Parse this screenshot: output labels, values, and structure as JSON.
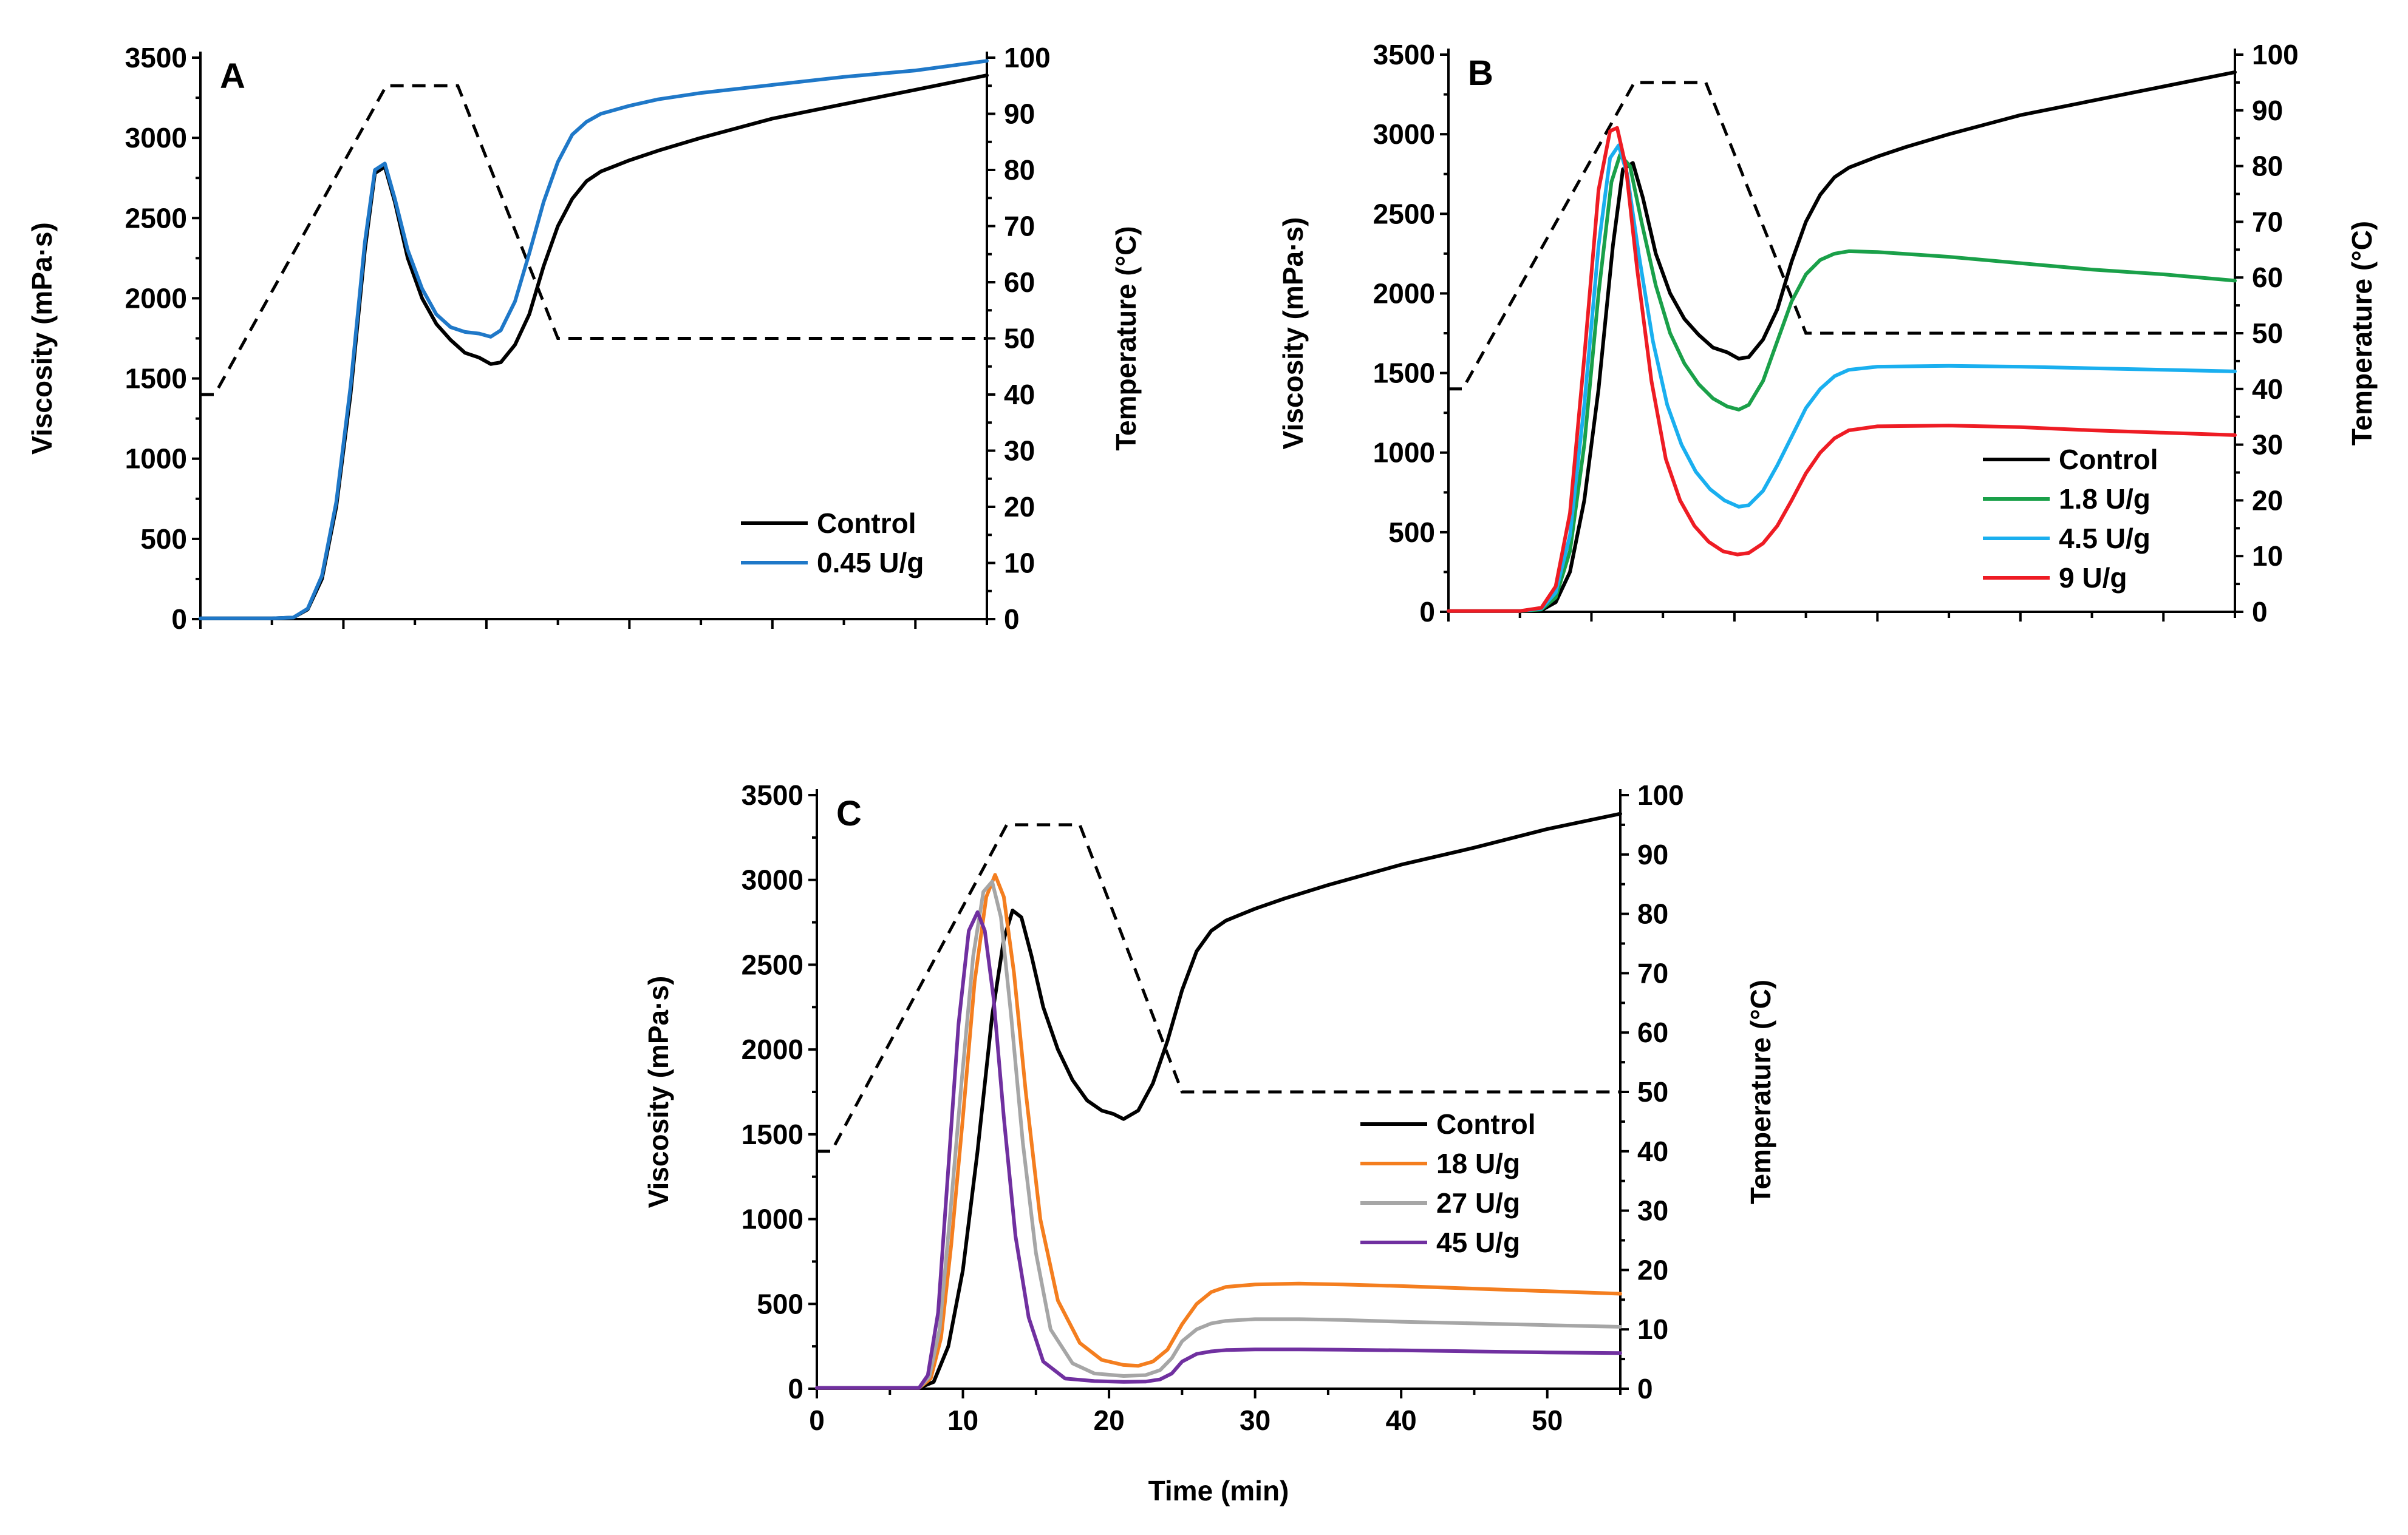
{
  "colors": {
    "control": "#000000",
    "u045": "#1f78c8",
    "u18": "#1aa049",
    "u45b": "#1aafef",
    "u9": "#ee1c24",
    "u18c": "#f47e1f",
    "u27": "#a6a6a6",
    "u45c": "#7030a0"
  },
  "chart_data": [
    {
      "type": "line",
      "panel": "A",
      "ylabel": "Viscosity (mPa·s)",
      "y2label": "Temperature (°C)",
      "xlabel": "",
      "xlim": [
        0,
        55
      ],
      "ylim": [
        0,
        3500
      ],
      "y2lim": [
        0,
        100
      ],
      "y_ticks": [
        0,
        500,
        1000,
        1500,
        2000,
        2500,
        3000,
        3500
      ],
      "y2_ticks": [
        0,
        10,
        20,
        30,
        40,
        50,
        60,
        70,
        80,
        90,
        100
      ],
      "x_ticks": [
        0,
        10,
        20,
        30,
        40,
        50
      ],
      "show_x_labels": false,
      "legend": "bottom-right",
      "temperature": {
        "x": [
          0,
          1,
          13,
          18,
          25,
          55
        ],
        "y": [
          40,
          40,
          95,
          95,
          50,
          50
        ]
      },
      "series": [
        {
          "name": "Control",
          "color_key": "control",
          "x": [
            0,
            5,
            6.5,
            7.5,
            8.5,
            9.5,
            10.5,
            11.5,
            12.2,
            12.9,
            13.6,
            14.5,
            15.5,
            16.5,
            17.5,
            18.5,
            19.5,
            20.3,
            21,
            22,
            23,
            24,
            25,
            26,
            27,
            28,
            30,
            32,
            35,
            40,
            45,
            50,
            55
          ],
          "y": [
            5,
            5,
            10,
            60,
            250,
            700,
            1400,
            2300,
            2780,
            2820,
            2600,
            2250,
            2000,
            1840,
            1740,
            1660,
            1630,
            1590,
            1600,
            1710,
            1900,
            2200,
            2450,
            2620,
            2730,
            2790,
            2860,
            2920,
            3000,
            3120,
            3210,
            3300,
            3390
          ]
        },
        {
          "name": "0.45 U/g",
          "color_key": "u045",
          "x": [
            0,
            5,
            6.5,
            7.5,
            8.5,
            9.5,
            10.5,
            11.5,
            12.2,
            12.9,
            13.6,
            14.5,
            15.5,
            16.5,
            17.5,
            18.5,
            19.5,
            20.3,
            21,
            22,
            23,
            24,
            25,
            26,
            27,
            28,
            30,
            32,
            35,
            40,
            45,
            50,
            55
          ],
          "y": [
            5,
            5,
            10,
            65,
            270,
            730,
            1450,
            2350,
            2800,
            2840,
            2620,
            2300,
            2060,
            1900,
            1820,
            1790,
            1780,
            1760,
            1800,
            1980,
            2280,
            2600,
            2850,
            3020,
            3100,
            3150,
            3200,
            3240,
            3280,
            3330,
            3380,
            3420,
            3480
          ]
        }
      ]
    },
    {
      "type": "line",
      "panel": "B",
      "ylabel": "Viscosity (mPa·s)",
      "y2label": "Temperature (°C)",
      "xlabel": "",
      "xlim": [
        0,
        55
      ],
      "ylim": [
        0,
        3500
      ],
      "y2lim": [
        0,
        100
      ],
      "y_ticks": [
        0,
        500,
        1000,
        1500,
        2000,
        2500,
        3000,
        3500
      ],
      "y2_ticks": [
        0,
        10,
        20,
        30,
        40,
        50,
        60,
        70,
        80,
        90,
        100
      ],
      "x_ticks": [
        0,
        10,
        20,
        30,
        40,
        50
      ],
      "show_x_labels": false,
      "legend": "bottom-right",
      "temperature": {
        "x": [
          0,
          1,
          13,
          18,
          25,
          55
        ],
        "y": [
          40,
          40,
          95,
          95,
          50,
          50
        ]
      },
      "series": [
        {
          "name": "Control",
          "color_key": "control",
          "x": [
            0,
            5,
            6.5,
            7.5,
            8.5,
            9.5,
            10.5,
            11.5,
            12.2,
            12.9,
            13.6,
            14.5,
            15.5,
            16.5,
            17.5,
            18.5,
            19.5,
            20.3,
            21,
            22,
            23,
            24,
            25,
            26,
            27,
            28,
            30,
            32,
            35,
            40,
            45,
            50,
            55
          ],
          "y": [
            5,
            5,
            10,
            60,
            250,
            700,
            1400,
            2300,
            2780,
            2820,
            2600,
            2250,
            2000,
            1840,
            1740,
            1660,
            1630,
            1590,
            1600,
            1710,
            1900,
            2200,
            2450,
            2620,
            2730,
            2790,
            2860,
            2920,
            3000,
            3120,
            3210,
            3300,
            3390
          ]
        },
        {
          "name": "1.8 U/g",
          "color_key": "u18",
          "x": [
            0,
            5,
            6.5,
            7.5,
            8.5,
            9.5,
            10.5,
            11.4,
            12,
            12.7,
            13.5,
            14.5,
            15.5,
            16.5,
            17.5,
            18.5,
            19.5,
            20.3,
            21,
            22,
            23,
            24,
            25,
            26,
            27,
            28,
            30,
            35,
            40,
            45,
            50,
            55
          ],
          "y": [
            5,
            5,
            15,
            90,
            380,
            1050,
            2000,
            2700,
            2870,
            2800,
            2450,
            2050,
            1750,
            1560,
            1430,
            1340,
            1290,
            1270,
            1300,
            1450,
            1700,
            1950,
            2120,
            2210,
            2250,
            2265,
            2260,
            2230,
            2190,
            2150,
            2120,
            2080
          ]
        },
        {
          "name": "4.5 U/g",
          "color_key": "u45b",
          "x": [
            0,
            5,
            6.5,
            7.5,
            8.5,
            9.5,
            10.5,
            11.3,
            11.9,
            12.5,
            13.3,
            14.3,
            15.3,
            16.3,
            17.3,
            18.3,
            19.3,
            20.3,
            21,
            22,
            23,
            24,
            25,
            26,
            27,
            28,
            30,
            35,
            40,
            45,
            50,
            55
          ],
          "y": [
            5,
            5,
            20,
            120,
            480,
            1300,
            2300,
            2850,
            2930,
            2750,
            2250,
            1700,
            1300,
            1050,
            880,
            770,
            700,
            660,
            670,
            760,
            920,
            1100,
            1280,
            1400,
            1480,
            1520,
            1540,
            1545,
            1540,
            1530,
            1520,
            1510
          ]
        },
        {
          "name": "9 U/g",
          "color_key": "u9",
          "x": [
            0,
            5,
            6.5,
            7.5,
            8.5,
            9.5,
            10.5,
            11.3,
            11.8,
            12.4,
            13.2,
            14.2,
            15.2,
            16.2,
            17.2,
            18.2,
            19.2,
            20.2,
            21,
            22,
            23,
            24,
            25,
            26,
            27,
            28,
            30,
            35,
            40,
            45,
            50,
            55
          ],
          "y": [
            5,
            5,
            25,
            160,
            620,
            1600,
            2650,
            3020,
            3040,
            2800,
            2150,
            1450,
            960,
            700,
            540,
            440,
            380,
            360,
            370,
            430,
            540,
            700,
            870,
            1000,
            1090,
            1140,
            1165,
            1170,
            1160,
            1140,
            1125,
            1110
          ]
        }
      ]
    },
    {
      "type": "line",
      "panel": "C",
      "ylabel": "Viscosity (mPa·s)",
      "y2label": "Temperature (°C)",
      "xlabel": "Time (min)",
      "xlim": [
        0,
        55
      ],
      "ylim": [
        0,
        3500
      ],
      "y2lim": [
        0,
        100
      ],
      "y_ticks": [
        0,
        500,
        1000,
        1500,
        2000,
        2500,
        3000,
        3500
      ],
      "y2_ticks": [
        0,
        10,
        20,
        30,
        40,
        50,
        60,
        70,
        80,
        90,
        100
      ],
      "x_ticks": [
        0,
        10,
        20,
        30,
        40,
        50
      ],
      "show_x_labels": true,
      "legend": "bottom-right",
      "temperature": {
        "x": [
          0,
          1,
          13,
          18,
          25,
          55
        ],
        "y": [
          40,
          40,
          95,
          95,
          50,
          50
        ]
      },
      "series": [
        {
          "name": "Control",
          "color_key": "control",
          "x": [
            0,
            7,
            8,
            9,
            10,
            11,
            12,
            12.8,
            13.4,
            14,
            14.7,
            15.5,
            16.5,
            17.5,
            18.5,
            19.5,
            20.3,
            21,
            22,
            23,
            24,
            25,
            26,
            27,
            28,
            30,
            32,
            35,
            40,
            45,
            50,
            55
          ],
          "y": [
            5,
            5,
            40,
            250,
            700,
            1400,
            2200,
            2650,
            2820,
            2780,
            2550,
            2250,
            2000,
            1820,
            1700,
            1640,
            1620,
            1590,
            1640,
            1800,
            2050,
            2350,
            2580,
            2700,
            2760,
            2830,
            2890,
            2970,
            3090,
            3190,
            3300,
            3390
          ]
        },
        {
          "name": "18 U/g",
          "color_key": "u18c",
          "x": [
            0,
            7,
            7.8,
            8.5,
            9.2,
            10,
            10.8,
            11.6,
            12.2,
            12.8,
            13.5,
            14.3,
            15.3,
            16.5,
            18,
            19.5,
            21,
            22,
            23,
            24,
            25,
            26,
            27,
            28,
            30,
            33,
            36,
            40,
            45,
            50,
            55
          ],
          "y": [
            5,
            5,
            60,
            300,
            850,
            1600,
            2400,
            2900,
            3030,
            2900,
            2450,
            1750,
            1000,
            520,
            270,
            170,
            140,
            135,
            160,
            230,
            380,
            500,
            570,
            600,
            615,
            620,
            615,
            605,
            590,
            575,
            560
          ]
        },
        {
          "name": "27 U/g",
          "color_key": "u27",
          "x": [
            0,
            7,
            7.7,
            8.4,
            9.1,
            9.9,
            10.7,
            11.4,
            12,
            12.6,
            13.3,
            14.1,
            15,
            16,
            17.5,
            19,
            21,
            22.5,
            23.5,
            24.3,
            25,
            26,
            27,
            28,
            30,
            33,
            36,
            40,
            45,
            50,
            55
          ],
          "y": [
            5,
            5,
            70,
            350,
            1000,
            1800,
            2550,
            2930,
            2990,
            2780,
            2200,
            1450,
            800,
            350,
            150,
            90,
            75,
            80,
            110,
            180,
            280,
            350,
            385,
            400,
            410,
            410,
            405,
            395,
            385,
            375,
            365
          ]
        },
        {
          "name": "45 U/g",
          "color_key": "u45c",
          "x": [
            0,
            7,
            7.6,
            8.3,
            9,
            9.7,
            10.4,
            11,
            11.5,
            12.1,
            12.8,
            13.6,
            14.5,
            15.5,
            17,
            19,
            21,
            22.5,
            23.5,
            24.3,
            25,
            26,
            27,
            28,
            30,
            33,
            36,
            40,
            45,
            50,
            55
          ],
          "y": [
            5,
            5,
            80,
            450,
            1300,
            2150,
            2700,
            2810,
            2700,
            2300,
            1600,
            900,
            420,
            160,
            60,
            45,
            40,
            42,
            55,
            90,
            160,
            205,
            220,
            228,
            232,
            232,
            230,
            226,
            220,
            214,
            210
          ]
        }
      ]
    }
  ]
}
